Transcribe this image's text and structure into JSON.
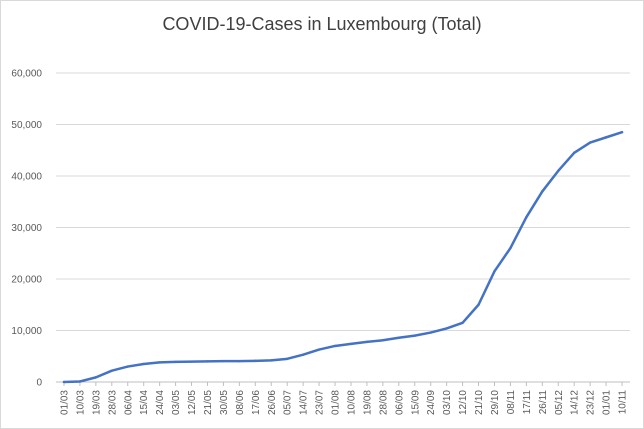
{
  "chart_data": {
    "type": "line",
    "title": "COVID-19-Cases in Luxembourg (Total)",
    "xlabel": "",
    "ylabel": "",
    "ylim": [
      0,
      60000
    ],
    "yticks": [
      "0",
      "10,000",
      "20,000",
      "30,000",
      "40,000",
      "50,000",
      "60,000"
    ],
    "grid": "horizontal",
    "categories": [
      "01/03",
      "10/03",
      "19/03",
      "28/03",
      "06/04",
      "15/04",
      "24/04",
      "03/05",
      "12/05",
      "21/05",
      "30/05",
      "08/06",
      "17/06",
      "26/06",
      "05/07",
      "14/07",
      "23/07",
      "01/08",
      "10/08",
      "19/08",
      "28/08",
      "06/09",
      "15/09",
      "24/09",
      "03/10",
      "12/10",
      "21/10",
      "29/10",
      "08/11",
      "17/11",
      "26/11",
      "05/12",
      "14/12",
      "23/12",
      "01/01",
      "10/11"
    ],
    "series": [
      {
        "color": "#4472c4",
        "values": [
          0,
          100,
          900,
          2200,
          3000,
          3500,
          3800,
          3900,
          3950,
          4000,
          4050,
          4050,
          4100,
          4200,
          4500,
          5300,
          6300,
          7000,
          7400,
          7800,
          8100,
          8600,
          9000,
          9600,
          10400,
          11500,
          15000,
          21500,
          26000,
          32000,
          37000,
          41000,
          44500,
          46500,
          47500,
          48500
        ]
      }
    ]
  }
}
